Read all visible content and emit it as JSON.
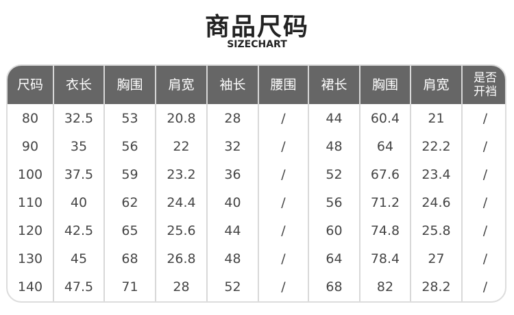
{
  "title": "商品尺码",
  "subtitle": "SIZECHART",
  "table": {
    "headers": [
      "尺码",
      "衣长",
      "胸围",
      "肩宽",
      "袖长",
      "腰围",
      "裙长",
      "胸围",
      "肩宽",
      "是否\n开裆"
    ],
    "rows": [
      [
        "80",
        "32.5",
        "53",
        "20.8",
        "28",
        "/",
        "44",
        "60.4",
        "21",
        "/"
      ],
      [
        "90",
        "35",
        "56",
        "22",
        "32",
        "/",
        "48",
        "64",
        "22.2",
        "/"
      ],
      [
        "100",
        "37.5",
        "59",
        "23.2",
        "36",
        "/",
        "52",
        "67.6",
        "23.4",
        "/"
      ],
      [
        "110",
        "40",
        "62",
        "24.4",
        "40",
        "/",
        "56",
        "71.2",
        "24.6",
        "/"
      ],
      [
        "120",
        "42.5",
        "65",
        "25.6",
        "44",
        "/",
        "60",
        "74.8",
        "25.8",
        "/"
      ],
      [
        "130",
        "45",
        "68",
        "26.8",
        "48",
        "/",
        "64",
        "78.4",
        "27",
        "/"
      ],
      [
        "140",
        "47.5",
        "71",
        "28",
        "52",
        "/",
        "68",
        "82",
        "28.2",
        "/"
      ]
    ]
  },
  "colors": {
    "header_bg": "#666666",
    "border": "#d8d8d8",
    "text": "#444444"
  }
}
